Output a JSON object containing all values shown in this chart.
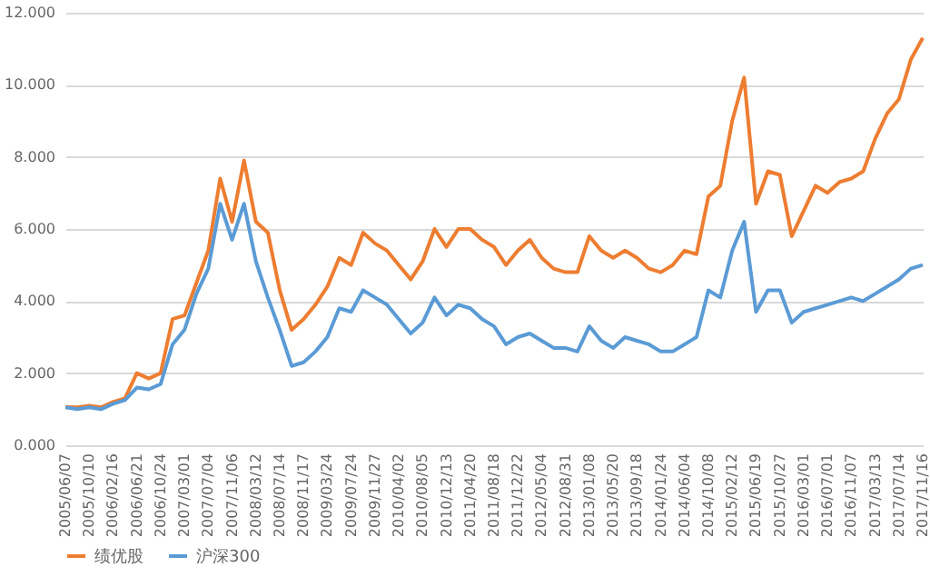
{
  "chart_data": {
    "type": "line",
    "categories": [
      "2005/06/07",
      null,
      "2005/10/10",
      null,
      "2006/02/16",
      null,
      "2006/06/21",
      null,
      "2006/10/24",
      null,
      "2007/03/01",
      null,
      "2007/07/04",
      null,
      "2007/11/06",
      null,
      "2008/03/12",
      null,
      "2008/07/14",
      null,
      "2008/11/17",
      null,
      "2009/03/24",
      null,
      "2009/07/24",
      null,
      "2009/11/27",
      null,
      "2010/04/02",
      null,
      "2010/08/05",
      null,
      "2010/12/13",
      null,
      "2011/04/20",
      null,
      "2011/08/18",
      null,
      "2011/12/22",
      null,
      "2012/05/04",
      null,
      "2012/08/31",
      null,
      "2013/01/08",
      null,
      "2013/05/20",
      null,
      "2013/09/18",
      null,
      "2014/01/24",
      null,
      "2014/06/04",
      null,
      "2014/10/08",
      null,
      "2015/02/12",
      null,
      "2015/06/19",
      null,
      "2015/10/27",
      null,
      "2016/03/01",
      null,
      "2016/07/01",
      null,
      "2016/11/07",
      null,
      "2017/03/13",
      null,
      "2017/07/14",
      null,
      "2017/11/16"
    ],
    "series": [
      {
        "name": "绩优股",
        "color": "#ed7d31",
        "values": [
          1.06,
          1.05,
          1.1,
          1.05,
          1.2,
          1.3,
          2.0,
          1.85,
          2.0,
          3.5,
          3.6,
          4.5,
          5.4,
          7.4,
          6.2,
          7.9,
          6.2,
          5.9,
          4.3,
          3.2,
          3.5,
          3.9,
          4.4,
          5.2,
          5.0,
          5.9,
          5.6,
          5.4,
          5.0,
          4.6,
          5.1,
          6.0,
          5.5,
          6.0,
          6.0,
          5.7,
          5.5,
          5.0,
          5.4,
          5.7,
          5.2,
          4.9,
          4.8,
          4.8,
          5.8,
          5.4,
          5.2,
          5.4,
          5.2,
          4.9,
          4.8,
          5.0,
          5.4,
          5.3,
          6.9,
          7.2,
          9.0,
          10.2,
          6.7,
          7.6,
          7.5,
          5.8,
          6.5,
          7.2,
          7.0,
          7.3,
          7.4,
          7.6,
          8.5,
          9.2,
          9.6,
          10.7,
          11.3
        ]
      },
      {
        "name": "沪深300",
        "color": "#5b9bd5",
        "values": [
          1.05,
          1.0,
          1.05,
          1.0,
          1.15,
          1.25,
          1.6,
          1.55,
          1.7,
          2.8,
          3.2,
          4.2,
          4.9,
          6.7,
          5.7,
          6.7,
          5.1,
          4.1,
          3.2,
          2.2,
          2.3,
          2.6,
          3.0,
          3.8,
          3.7,
          4.3,
          4.1,
          3.9,
          3.5,
          3.1,
          3.4,
          4.1,
          3.6,
          3.9,
          3.8,
          3.5,
          3.3,
          2.8,
          3.0,
          3.1,
          2.9,
          2.7,
          2.7,
          2.6,
          3.3,
          2.9,
          2.7,
          3.0,
          2.9,
          2.8,
          2.6,
          2.6,
          2.8,
          3.0,
          4.3,
          4.1,
          5.4,
          6.2,
          3.7,
          4.3,
          4.3,
          3.4,
          3.7,
          3.8,
          3.9,
          4.0,
          4.1,
          4.0,
          4.2,
          4.4,
          4.6,
          4.9,
          5.0
        ]
      }
    ],
    "ylim": [
      0,
      12
    ],
    "yticks": [
      {
        "value": 0,
        "label": "0.000"
      },
      {
        "value": 2,
        "label": "2.000"
      },
      {
        "value": 4,
        "label": "4.000"
      },
      {
        "value": 6,
        "label": "6.000"
      },
      {
        "value": 8,
        "label": "8.000"
      },
      {
        "value": 10,
        "label": "10.000"
      },
      {
        "value": 12,
        "label": "12.000"
      }
    ],
    "grid": "y",
    "legend": "bottom",
    "line_style": "solid",
    "marker": "none"
  }
}
